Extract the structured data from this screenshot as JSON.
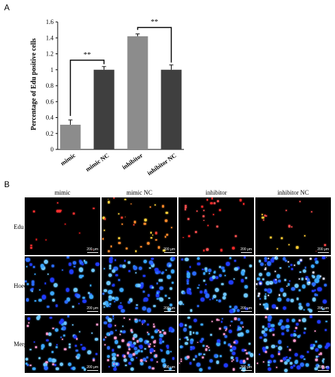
{
  "panel_a_label": "A",
  "panel_b_label": "B",
  "chart_data": {
    "type": "bar",
    "categories": [
      "mimic",
      "mimic NC",
      "inhibitor",
      "inhibitor NC"
    ],
    "values": [
      0.31,
      1.0,
      1.42,
      1.0
    ],
    "errors": [
      0.06,
      0.04,
      0.03,
      0.06
    ],
    "bar_colors": [
      "#8c8c8c",
      "#3f3f3f",
      "#8c8c8c",
      "#3f3f3f"
    ],
    "title": "",
    "xlabel": "",
    "ylabel": "Percentage of Edu positive cells",
    "ylim": [
      0,
      1.6
    ],
    "yticks": [
      "0",
      "0.2",
      "0.4",
      "0.6",
      "0.8",
      "1",
      "1.2",
      "1.4",
      "1.6"
    ],
    "grid": false,
    "significance": [
      {
        "from": "mimic",
        "to": "mimic NC",
        "label": "**"
      },
      {
        "from": "inhibitor",
        "to": "inhibitor NC",
        "label": "**"
      }
    ]
  },
  "micrographs": {
    "columns": [
      "mimic",
      "mimic NC",
      "inhibitor",
      "inhibitor NC"
    ],
    "rows": [
      "Edu",
      "Hoechst",
      "Merge"
    ],
    "scale_label": "200 μm"
  }
}
